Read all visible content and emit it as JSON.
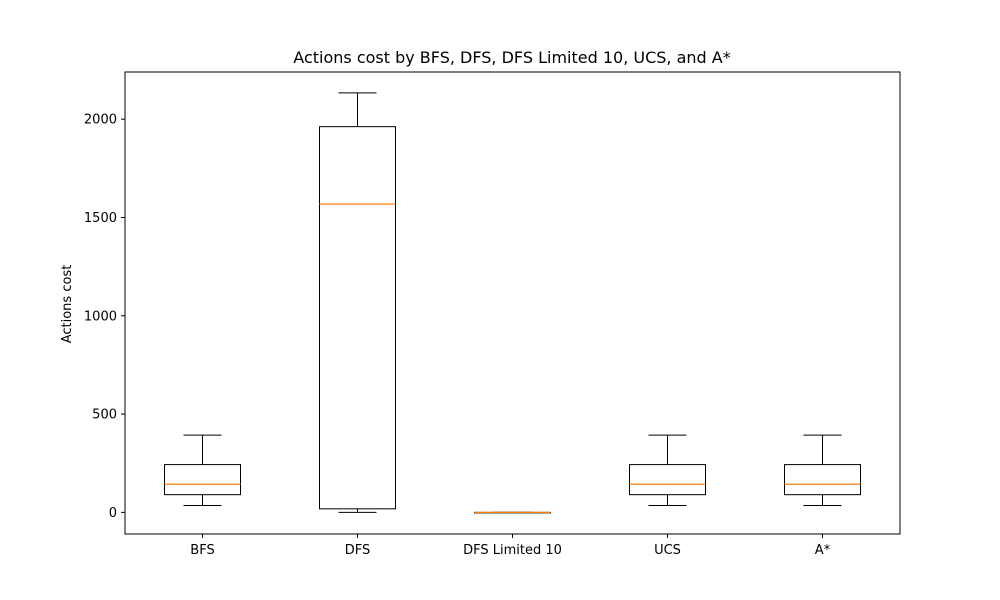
{
  "chart_data": {
    "type": "box",
    "title": "Actions cost by BFS, DFS, DFS Limited 10, UCS, and A*",
    "xlabel": "",
    "ylabel": "Actions cost",
    "ylim": [
      -110,
      2240
    ],
    "yticks": [
      0,
      500,
      1000,
      1500,
      2000
    ],
    "categories": [
      "BFS",
      "DFS",
      "DFS Limited 10",
      "UCS",
      "A*"
    ],
    "boxes": [
      {
        "whisker_low": 35,
        "q1": 90,
        "median": 143,
        "q3": 243,
        "whisker_high": 393
      },
      {
        "whisker_low": 0,
        "q1": 18,
        "median": 1568,
        "q3": 1962,
        "whisker_high": 2134
      },
      {
        "whisker_low": 0,
        "q1": 0,
        "median": 0,
        "q3": 0,
        "whisker_high": 0
      },
      {
        "whisker_low": 35,
        "q1": 90,
        "median": 143,
        "q3": 243,
        "whisker_high": 393
      },
      {
        "whisker_low": 35,
        "q1": 90,
        "median": 143,
        "q3": 243,
        "whisker_high": 393
      }
    ],
    "grid": false,
    "colors": {
      "box": "#000000",
      "median": "#ff7f0e",
      "axes": "#000000",
      "background": "#ffffff"
    }
  }
}
